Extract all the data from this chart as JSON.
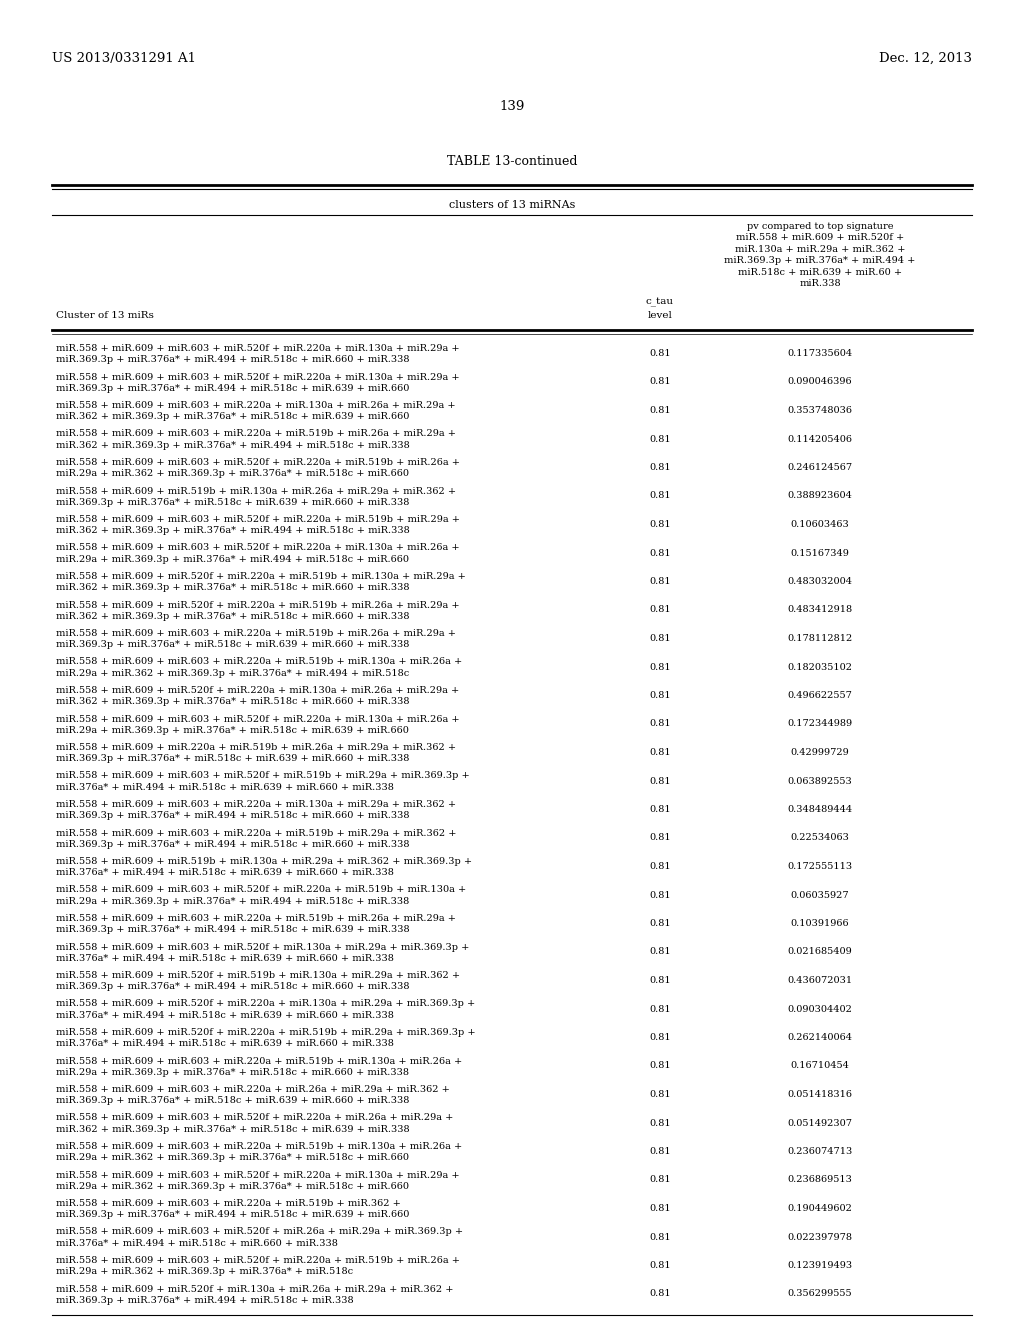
{
  "header_left": "US 2013/0331291 A1",
  "header_right": "Dec. 12, 2013",
  "page_number": "139",
  "table_title": "TABLE 13-continued",
  "table_subtitle": "clusters of 13 miRNAs",
  "col1_header": "Cluster of 13 miRs",
  "col2_header": "c_tau\nlevel",
  "col3_header": "pv compared to top signature\nmiR.558 + miR.609 + miR.520f +\nmiR.130a + miR.29a + miR.362 +\nmiR.369.3p + miR.376a* + miR.494 +\nmiR.518c + miR.639 + miR.60 +\nmiR.338",
  "rows": [
    [
      "miR.558 + miR.609 + miR.603 + miR.520f + miR.220a + miR.130a + miR.29a +\nmiR.369.3p + miR.376a* + miR.494 + miR.518c + miR.660 + miR.338",
      "0.81",
      "0.117335604"
    ],
    [
      "miR.558 + miR.609 + miR.603 + miR.520f + miR.220a + miR.130a + miR.29a +\nmiR.369.3p + miR.376a* + miR.494 + miR.518c + miR.639 + miR.660",
      "0.81",
      "0.090046396"
    ],
    [
      "miR.558 + miR.609 + miR.603 + miR.220a + miR.130a + miR.26a + miR.29a +\nmiR.362 + miR.369.3p + miR.376a* + miR.518c + miR.639 + miR.660",
      "0.81",
      "0.353748036"
    ],
    [
      "miR.558 + miR.609 + miR.603 + miR.220a + miR.519b + miR.26a + miR.29a +\nmiR.362 + miR.369.3p + miR.376a* + miR.494 + miR.518c + miR.338",
      "0.81",
      "0.114205406"
    ],
    [
      "miR.558 + miR.609 + miR.603 + miR.520f + miR.220a + miR.519b + miR.26a +\nmiR.29a + miR.362 + miR.369.3p + miR.376a* + miR.518c + miR.660",
      "0.81",
      "0.246124567"
    ],
    [
      "miR.558 + miR.609 + miR.519b + miR.130a + miR.26a + miR.29a + miR.362 +\nmiR.369.3p + miR.376a* + miR.518c + miR.639 + miR.660 + miR.338",
      "0.81",
      "0.388923604"
    ],
    [
      "miR.558 + miR.609 + miR.603 + miR.520f + miR.220a + miR.519b + miR.29a +\nmiR.362 + miR.369.3p + miR.376a* + miR.494 + miR.518c + miR.338",
      "0.81",
      "0.10603463"
    ],
    [
      "miR.558 + miR.609 + miR.603 + miR.520f + miR.220a + miR.130a + miR.26a +\nmiR.29a + miR.369.3p + miR.376a* + miR.494 + miR.518c + miR.660",
      "0.81",
      "0.15167349"
    ],
    [
      "miR.558 + miR.609 + miR.520f + miR.220a + miR.519b + miR.130a + miR.29a +\nmiR.362 + miR.369.3p + miR.376a* + miR.518c + miR.660 + miR.338",
      "0.81",
      "0.483032004"
    ],
    [
      "miR.558 + miR.609 + miR.520f + miR.220a + miR.519b + miR.26a + miR.29a +\nmiR.362 + miR.369.3p + miR.376a* + miR.518c + miR.660 + miR.338",
      "0.81",
      "0.483412918"
    ],
    [
      "miR.558 + miR.609 + miR.603 + miR.220a + miR.519b + miR.26a + miR.29a +\nmiR.369.3p + miR.376a* + miR.518c + miR.639 + miR.660 + miR.338",
      "0.81",
      "0.178112812"
    ],
    [
      "miR.558 + miR.609 + miR.603 + miR.220a + miR.519b + miR.130a + miR.26a +\nmiR.29a + miR.362 + miR.369.3p + miR.376a* + miR.494 + miR.518c",
      "0.81",
      "0.182035102"
    ],
    [
      "miR.558 + miR.609 + miR.520f + miR.220a + miR.130a + miR.26a + miR.29a +\nmiR.362 + miR.369.3p + miR.376a* + miR.518c + miR.660 + miR.338",
      "0.81",
      "0.496622557"
    ],
    [
      "miR.558 + miR.609 + miR.603 + miR.520f + miR.220a + miR.130a + miR.26a +\nmiR.29a + miR.369.3p + miR.376a* + miR.518c + miR.639 + miR.660",
      "0.81",
      "0.172344989"
    ],
    [
      "miR.558 + miR.609 + miR.220a + miR.519b + miR.26a + miR.29a + miR.362 +\nmiR.369.3p + miR.376a* + miR.518c + miR.639 + miR.660 + miR.338",
      "0.81",
      "0.42999729"
    ],
    [
      "miR.558 + miR.609 + miR.603 + miR.520f + miR.519b + miR.29a + miR.369.3p +\nmiR.376a* + miR.494 + miR.518c + miR.639 + miR.660 + miR.338",
      "0.81",
      "0.063892553"
    ],
    [
      "miR.558 + miR.609 + miR.603 + miR.220a + miR.130a + miR.29a + miR.362 +\nmiR.369.3p + miR.376a* + miR.494 + miR.518c + miR.660 + miR.338",
      "0.81",
      "0.348489444"
    ],
    [
      "miR.558 + miR.609 + miR.603 + miR.220a + miR.519b + miR.29a + miR.362 +\nmiR.369.3p + miR.376a* + miR.494 + miR.518c + miR.660 + miR.338",
      "0.81",
      "0.22534063"
    ],
    [
      "miR.558 + miR.609 + miR.519b + miR.130a + miR.29a + miR.362 + miR.369.3p +\nmiR.376a* + miR.494 + miR.518c + miR.639 + miR.660 + miR.338",
      "0.81",
      "0.172555113"
    ],
    [
      "miR.558 + miR.609 + miR.603 + miR.520f + miR.220a + miR.519b + miR.130a +\nmiR.29a + miR.369.3p + miR.376a* + miR.494 + miR.518c + miR.338",
      "0.81",
      "0.06035927"
    ],
    [
      "miR.558 + miR.609 + miR.603 + miR.220a + miR.519b + miR.26a + miR.29a +\nmiR.369.3p + miR.376a* + miR.494 + miR.518c + miR.639 + miR.338",
      "0.81",
      "0.10391966"
    ],
    [
      "miR.558 + miR.609 + miR.603 + miR.520f + miR.130a + miR.29a + miR.369.3p +\nmiR.376a* + miR.494 + miR.518c + miR.639 + miR.660 + miR.338",
      "0.81",
      "0.021685409"
    ],
    [
      "miR.558 + miR.609 + miR.520f + miR.519b + miR.130a + miR.29a + miR.362 +\nmiR.369.3p + miR.376a* + miR.494 + miR.518c + miR.660 + miR.338",
      "0.81",
      "0.436072031"
    ],
    [
      "miR.558 + miR.609 + miR.520f + miR.220a + miR.130a + miR.29a + miR.369.3p +\nmiR.376a* + miR.494 + miR.518c + miR.639 + miR.660 + miR.338",
      "0.81",
      "0.090304402"
    ],
    [
      "miR.558 + miR.609 + miR.520f + miR.220a + miR.519b + miR.29a + miR.369.3p +\nmiR.376a* + miR.494 + miR.518c + miR.639 + miR.660 + miR.338",
      "0.81",
      "0.262140064"
    ],
    [
      "miR.558 + miR.609 + miR.603 + miR.220a + miR.519b + miR.130a + miR.26a +\nmiR.29a + miR.369.3p + miR.376a* + miR.518c + miR.660 + miR.338",
      "0.81",
      "0.16710454"
    ],
    [
      "miR.558 + miR.609 + miR.603 + miR.220a + miR.26a + miR.29a + miR.362 +\nmiR.369.3p + miR.376a* + miR.518c + miR.639 + miR.660 + miR.338",
      "0.81",
      "0.051418316"
    ],
    [
      "miR.558 + miR.609 + miR.603 + miR.520f + miR.220a + miR.26a + miR.29a +\nmiR.362 + miR.369.3p + miR.376a* + miR.518c + miR.639 + miR.338",
      "0.81",
      "0.051492307"
    ],
    [
      "miR.558 + miR.609 + miR.603 + miR.220a + miR.519b + miR.130a + miR.26a +\nmiR.29a + miR.362 + miR.369.3p + miR.376a* + miR.518c + miR.660",
      "0.81",
      "0.236074713"
    ],
    [
      "miR.558 + miR.609 + miR.603 + miR.520f + miR.220a + miR.130a + miR.29a +\nmiR.29a + miR.362 + miR.369.3p + miR.376a* + miR.518c + miR.660",
      "0.81",
      "0.236869513"
    ],
    [
      "miR.558 + miR.609 + miR.603 + miR.220a + miR.519b + miR.362 +\nmiR.369.3p + miR.376a* + miR.494 + miR.518c + miR.639 + miR.660",
      "0.81",
      "0.190449602"
    ],
    [
      "miR.558 + miR.609 + miR.603 + miR.520f + miR.26a + miR.29a + miR.369.3p +\nmiR.376a* + miR.494 + miR.518c + miR.660 + miR.338",
      "0.81",
      "0.022397978"
    ],
    [
      "miR.558 + miR.609 + miR.603 + miR.520f + miR.220a + miR.519b + miR.26a +\nmiR.29a + miR.362 + miR.369.3p + miR.376a* + miR.518c",
      "0.81",
      "0.123919493"
    ],
    [
      "miR.558 + miR.609 + miR.520f + miR.130a + miR.26a + miR.29a + miR.362 +\nmiR.369.3p + miR.376a* + miR.494 + miR.518c + miR.338",
      "0.81",
      "0.356299555"
    ]
  ],
  "bg_color": "#ffffff",
  "text_color": "#000000"
}
